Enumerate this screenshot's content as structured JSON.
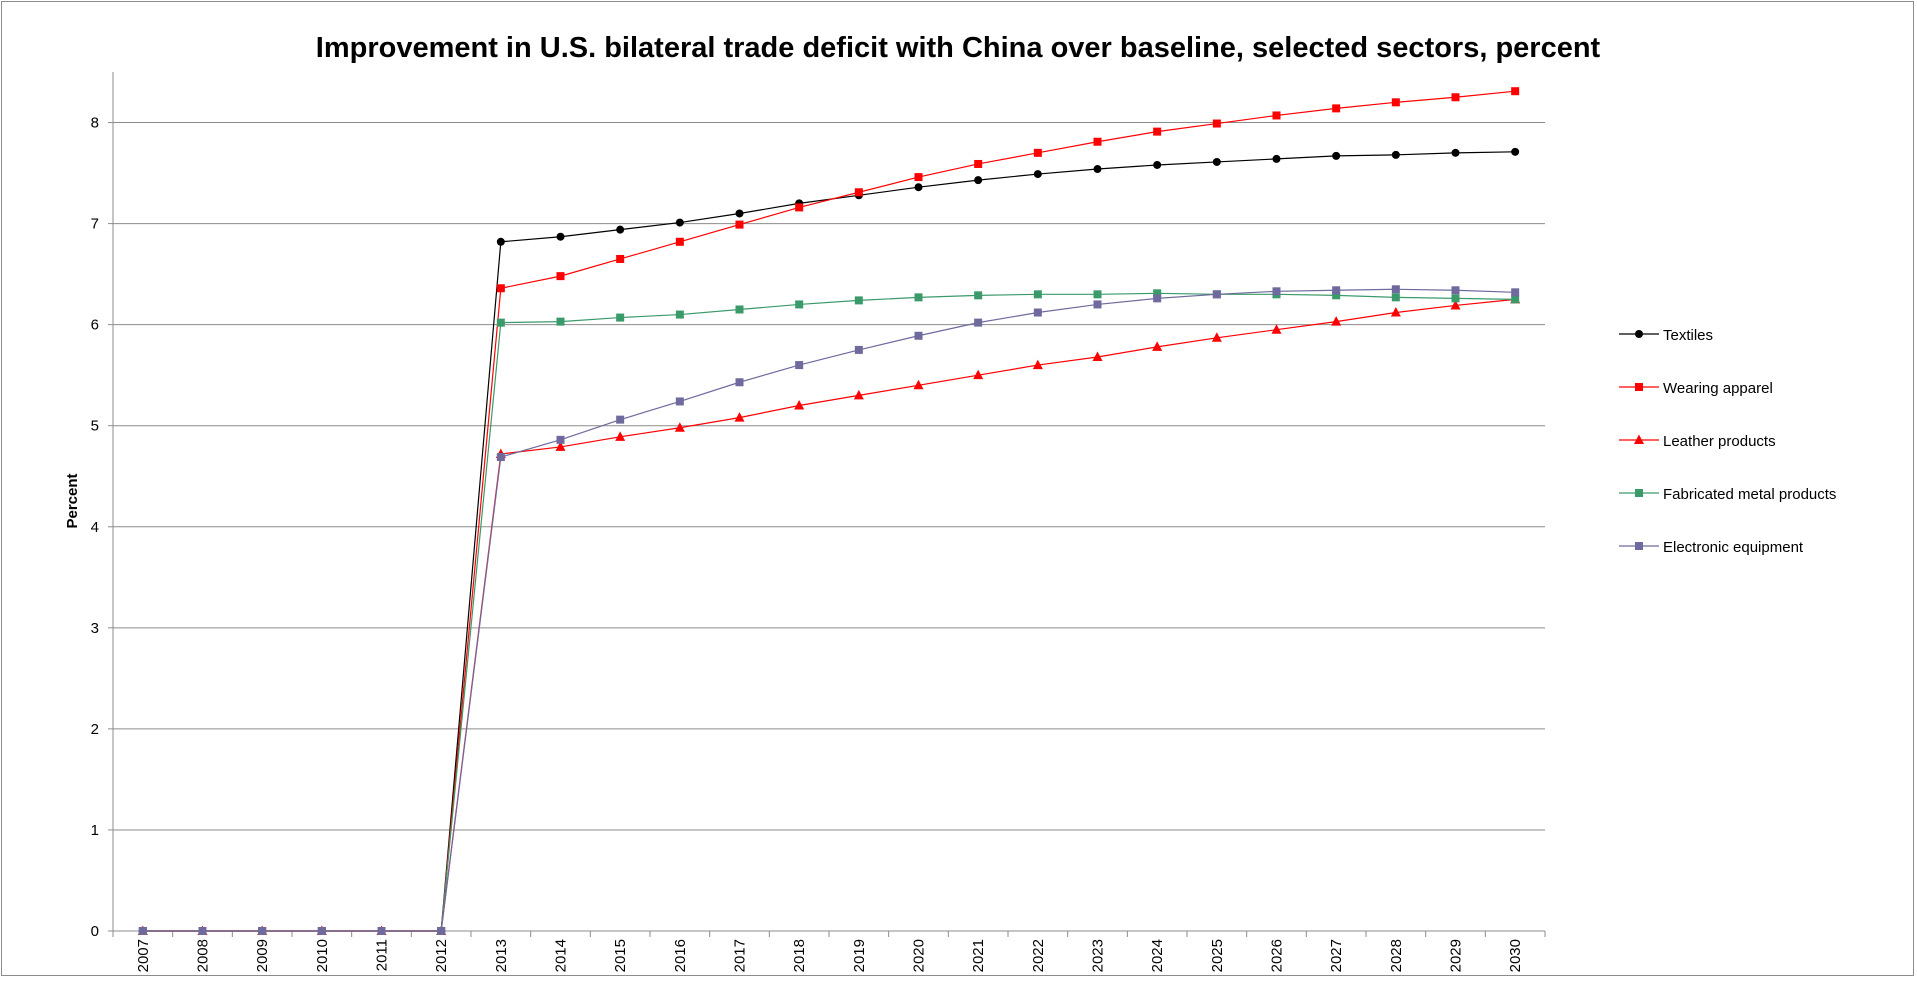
{
  "chart_data": {
    "type": "line",
    "title": "Improvement in U.S. bilateral trade deficit with China over baseline, selected sectors, percent",
    "xlabel": "",
    "ylabel": "Percent",
    "ylim": [
      0,
      8.5
    ],
    "yticks": [
      0,
      1,
      2,
      3,
      4,
      5,
      6,
      7,
      8
    ],
    "grid": true,
    "legend_position": "right",
    "categories": [
      "2007",
      "2008",
      "2009",
      "2010",
      "2011",
      "2012",
      "2013",
      "2014",
      "2015",
      "2016",
      "2017",
      "2018",
      "2019",
      "2020",
      "2021",
      "2022",
      "2023",
      "2024",
      "2025",
      "2026",
      "2027",
      "2028",
      "2029",
      "2030"
    ],
    "series": [
      {
        "name": "Textiles",
        "color": "#000000",
        "marker": "circle",
        "values": [
          0,
          0,
          0,
          0,
          0,
          0,
          6.82,
          6.87,
          6.94,
          7.01,
          7.1,
          7.2,
          7.28,
          7.36,
          7.43,
          7.49,
          7.54,
          7.58,
          7.61,
          7.64,
          7.67,
          7.68,
          7.7,
          7.71
        ]
      },
      {
        "name": "Wearing apparel",
        "color": "#ff0000",
        "marker": "square",
        "values": [
          0,
          0,
          0,
          0,
          0,
          0,
          6.36,
          6.48,
          6.65,
          6.82,
          6.99,
          7.16,
          7.31,
          7.46,
          7.59,
          7.7,
          7.81,
          7.91,
          7.99,
          8.07,
          8.14,
          8.2,
          8.25,
          8.31
        ]
      },
      {
        "name": "Leather products",
        "color": "#ff0000",
        "marker": "triangle",
        "values": [
          0,
          0,
          0,
          0,
          0,
          0,
          4.72,
          4.79,
          4.89,
          4.98,
          5.08,
          5.2,
          5.3,
          5.4,
          5.5,
          5.6,
          5.68,
          5.78,
          5.87,
          5.95,
          6.03,
          6.12,
          6.19,
          6.25
        ]
      },
      {
        "name": "Fabricated metal products",
        "color": "#3a9a6a",
        "marker": "square",
        "values": [
          0,
          0,
          0,
          0,
          0,
          0,
          6.02,
          6.03,
          6.07,
          6.1,
          6.15,
          6.2,
          6.24,
          6.27,
          6.29,
          6.3,
          6.3,
          6.31,
          6.3,
          6.3,
          6.29,
          6.27,
          6.26,
          6.25
        ]
      },
      {
        "name": "Electronic equipment",
        "color": "#6e6a9e",
        "marker": "square",
        "values": [
          0,
          0,
          0,
          0,
          0,
          0,
          4.69,
          4.86,
          5.06,
          5.24,
          5.43,
          5.6,
          5.75,
          5.89,
          6.02,
          6.12,
          6.2,
          6.26,
          6.3,
          6.33,
          6.34,
          6.35,
          6.34,
          6.32
        ]
      }
    ]
  }
}
